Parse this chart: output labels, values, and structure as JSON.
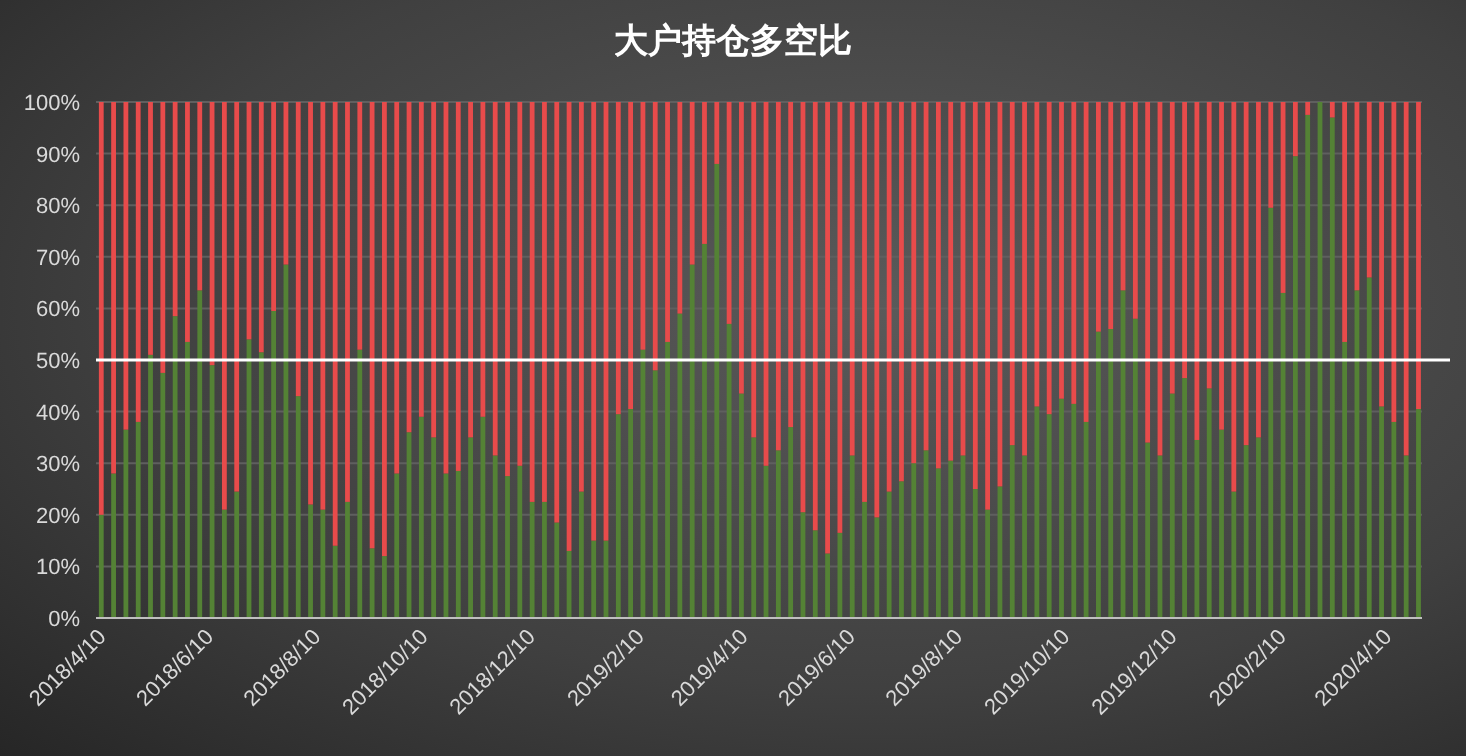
{
  "chart_data": {
    "type": "bar",
    "title": "大户持仓多空比",
    "stacked": true,
    "grid": "y",
    "x": [
      "2018-04-10",
      "2018-04-17",
      "2018-04-24",
      "2018-05-01",
      "2018-05-08",
      "2018-05-15",
      "2018-05-22",
      "2018-05-29",
      "2018-06-05",
      "2018-06-12",
      "2018-06-19",
      "2018-06-26",
      "2018-07-03",
      "2018-07-10",
      "2018-07-17",
      "2018-07-24",
      "2018-07-31",
      "2018-08-07",
      "2018-08-14",
      "2018-08-21",
      "2018-08-28",
      "2018-09-04",
      "2018-09-11",
      "2018-09-18",
      "2018-09-25",
      "2018-10-02",
      "2018-10-09",
      "2018-10-16",
      "2018-10-23",
      "2018-10-30",
      "2018-11-06",
      "2018-11-13",
      "2018-11-20",
      "2018-11-27",
      "2018-12-04",
      "2018-12-11",
      "2018-12-18",
      "2018-12-25",
      "2019-01-01",
      "2019-01-08",
      "2019-01-15",
      "2019-01-22",
      "2019-01-29",
      "2019-02-05",
      "2019-02-12",
      "2019-02-19",
      "2019-02-26",
      "2019-03-05",
      "2019-03-12",
      "2019-03-19",
      "2019-03-26",
      "2019-04-02",
      "2019-04-09",
      "2019-04-16",
      "2019-04-23",
      "2019-04-30",
      "2019-05-07",
      "2019-05-14",
      "2019-05-21",
      "2019-05-28",
      "2019-06-04",
      "2019-06-11",
      "2019-06-18",
      "2019-06-25",
      "2019-07-02",
      "2019-07-09",
      "2019-07-16",
      "2019-07-23",
      "2019-07-30",
      "2019-08-06",
      "2019-08-13",
      "2019-08-20",
      "2019-08-27",
      "2019-09-03",
      "2019-09-10",
      "2019-09-17",
      "2019-09-24",
      "2019-10-01",
      "2019-10-08",
      "2019-10-15",
      "2019-10-22",
      "2019-10-29",
      "2019-11-05",
      "2019-11-12",
      "2019-11-19",
      "2019-11-26",
      "2019-12-03",
      "2019-12-10",
      "2019-12-17",
      "2019-12-24",
      "2019-12-31",
      "2020-01-07",
      "2020-01-14",
      "2020-01-21",
      "2020-01-28",
      "2020-02-04",
      "2020-02-11",
      "2020-02-18",
      "2020-02-25",
      "2020-03-03",
      "2020-03-10",
      "2020-03-17",
      "2020-03-24",
      "2020-03-31",
      "2020-04-07",
      "2020-04-14",
      "2020-04-21",
      "2020-04-28"
    ],
    "series": [
      {
        "color": "#548235",
        "values": [
          20,
          28,
          36.5,
          38,
          51,
          47.5,
          58.5,
          53.5,
          63.5,
          49,
          21,
          24.5,
          54,
          51.5,
          59.5,
          68.5,
          43,
          22,
          21,
          14,
          22.5,
          52,
          13.5,
          12,
          28,
          36,
          39,
          35,
          28,
          28.5,
          35,
          39,
          31.5,
          27.5,
          29.5,
          22.5,
          22.5,
          18.5,
          13,
          24.5,
          15,
          15,
          39.5,
          40.5,
          52,
          48,
          53.5,
          59,
          68.5,
          72.5,
          88,
          57,
          43.5,
          35,
          29.5,
          32.5,
          37,
          20.5,
          17,
          12.5,
          16.5,
          31.5,
          22.5,
          19.5,
          24.5,
          26.5,
          30,
          32.5,
          29,
          30.5,
          31.5,
          25,
          21,
          25.5,
          33.5,
          31.5,
          41,
          39.5,
          42.5,
          41.5,
          38,
          55.5,
          56,
          63.5,
          58,
          34,
          31.5,
          43.5,
          46.5,
          34.5,
          44.5,
          36.5,
          24.5,
          33.5,
          35,
          79.5,
          63,
          89.5,
          97.5,
          100,
          97,
          53.5,
          63.5,
          66,
          41,
          38,
          31.5,
          40.5
        ]
      },
      {
        "color": "#e84b4b",
        "values": [
          80,
          72,
          63.5,
          62,
          49,
          52.5,
          41.5,
          46.5,
          36.5,
          51,
          79,
          75.5,
          46,
          48.5,
          40.5,
          31.5,
          57,
          78,
          79,
          86,
          77.5,
          48,
          86.5,
          88,
          72,
          64,
          61,
          65,
          72,
          71.5,
          65,
          61,
          68.5,
          72.5,
          70.5,
          77.5,
          77.5,
          81.5,
          87,
          75.5,
          85,
          85,
          60.5,
          59.5,
          48,
          52,
          46.5,
          41,
          31.5,
          27.5,
          12,
          43,
          56.5,
          65,
          70.5,
          67.5,
          63,
          79.5,
          83,
          87.5,
          83.5,
          68.5,
          77.5,
          80.5,
          75.5,
          73.5,
          70,
          67.5,
          71,
          69.5,
          68.5,
          75,
          79,
          74.5,
          66.5,
          68.5,
          59,
          60.5,
          57.5,
          58.5,
          62,
          44.5,
          44,
          36.5,
          42,
          66,
          68.5,
          56.5,
          53.5,
          65.5,
          55.5,
          63.5,
          75.5,
          66.5,
          65,
          20.5,
          37,
          10.5,
          2.5,
          0,
          3,
          46.5,
          36.5,
          34,
          59,
          62,
          68.5,
          59.5
        ]
      }
    ],
    "xlim": [
      "2018-04-07",
      "2020-04-30"
    ],
    "xticks": [
      {
        "value": "2018-04-10",
        "label": "2018/4/10"
      },
      {
        "value": "2018-06-10",
        "label": "2018/6/10"
      },
      {
        "value": "2018-08-10",
        "label": "2018/8/10"
      },
      {
        "value": "2018-10-10",
        "label": "2018/10/10"
      },
      {
        "value": "2018-12-10",
        "label": "2018/12/10"
      },
      {
        "value": "2019-02-10",
        "label": "2019/2/10"
      },
      {
        "value": "2019-04-10",
        "label": "2019/4/10"
      },
      {
        "value": "2019-06-10",
        "label": "2019/6/10"
      },
      {
        "value": "2019-08-10",
        "label": "2019/8/10"
      },
      {
        "value": "2019-10-10",
        "label": "2019/10/10"
      },
      {
        "value": "2019-12-10",
        "label": "2019/12/10"
      },
      {
        "value": "2020-02-10",
        "label": "2020/2/10"
      },
      {
        "value": "2020-04-10",
        "label": "2020/4/10"
      }
    ],
    "ylim": [
      0,
      100
    ],
    "yticks": [
      {
        "value": 0,
        "label": "0%"
      },
      {
        "value": 10,
        "label": "10%"
      },
      {
        "value": 20,
        "label": "20%"
      },
      {
        "value": 30,
        "label": "30%"
      },
      {
        "value": 40,
        "label": "40%"
      },
      {
        "value": 50,
        "label": "50%"
      },
      {
        "value": 60,
        "label": "60%"
      },
      {
        "value": 70,
        "label": "70%"
      },
      {
        "value": 80,
        "label": "80%"
      },
      {
        "value": 90,
        "label": "90%"
      },
      {
        "value": 100,
        "label": "100%"
      }
    ],
    "ref_lines": [
      {
        "axis": "y",
        "value": 50,
        "color": "#ffffff"
      }
    ]
  }
}
